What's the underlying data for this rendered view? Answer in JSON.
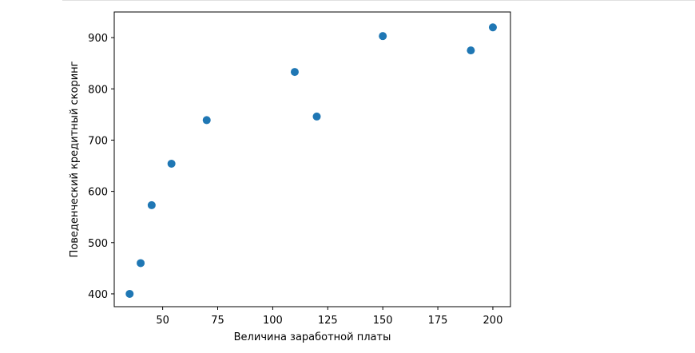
{
  "chart_data": {
    "type": "scatter",
    "title": "",
    "xlabel": "Величина заработной платы",
    "ylabel": "Поведенческий кредитный скоринг",
    "xlim": [
      28,
      208
    ],
    "ylim": [
      375,
      950
    ],
    "xticks": [
      50,
      75,
      100,
      125,
      150,
      175,
      200
    ],
    "yticks": [
      400,
      500,
      600,
      700,
      800,
      900
    ],
    "grid": false,
    "marker_color": "#1f77b4",
    "points": [
      {
        "x": 35,
        "y": 400
      },
      {
        "x": 40,
        "y": 460
      },
      {
        "x": 45,
        "y": 573
      },
      {
        "x": 54,
        "y": 654
      },
      {
        "x": 70,
        "y": 739
      },
      {
        "x": 110,
        "y": 833
      },
      {
        "x": 120,
        "y": 746
      },
      {
        "x": 150,
        "y": 903
      },
      {
        "x": 190,
        "y": 875
      },
      {
        "x": 200,
        "y": 920
      }
    ]
  }
}
